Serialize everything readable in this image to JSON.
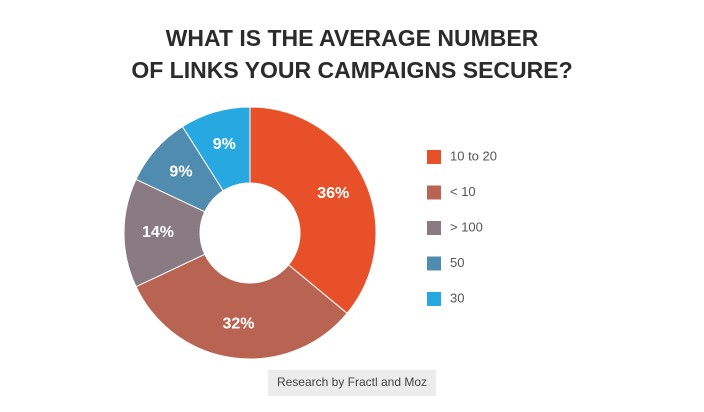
{
  "chart_data": {
    "type": "donut",
    "title": [
      "WHAT IS THE AVERAGE NUMBER",
      "OF LINKS YOUR CAMPAIGNS SECURE?"
    ],
    "categories": [
      "10 to 20",
      "< 10",
      "> 100",
      "50",
      "30"
    ],
    "values": [
      36,
      32,
      14,
      9,
      9
    ],
    "value_labels": [
      "36%",
      "32%",
      "14%",
      "9%",
      "9%"
    ],
    "colors": [
      "#e8502a",
      "#b96452",
      "#8a7b82",
      "#4f8cb0",
      "#28a8e0"
    ],
    "legend": "right",
    "source": "Research by Fractl and Moz"
  }
}
